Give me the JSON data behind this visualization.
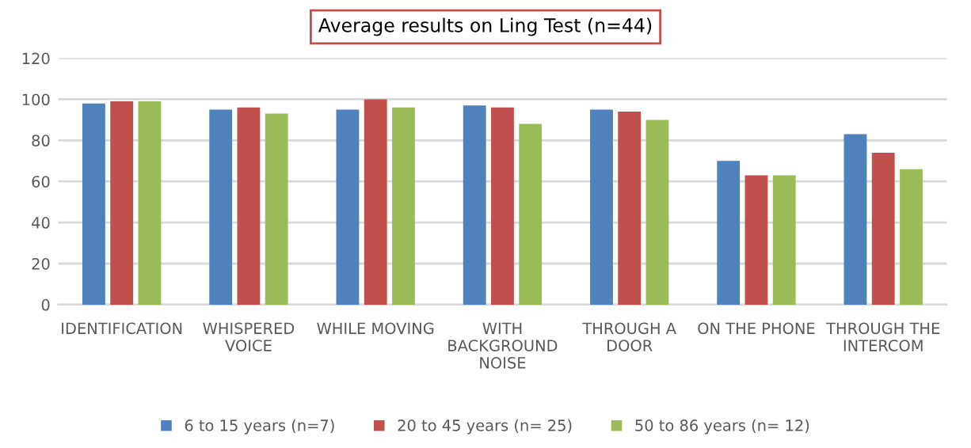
{
  "chart_data": {
    "type": "bar",
    "title": "Average results on Ling Test (n=44)",
    "categories": [
      "IDENTIFICATION",
      "WHISPERED\nVOICE",
      "WHILE MOVING",
      "WITH\nBACKGROUND\nNOISE",
      "THROUGH A\nDOOR",
      "ON THE PHONE",
      "THROUGH THE\nINTERCOM"
    ],
    "series": [
      {
        "name": "6 to 15 years (n=7)",
        "color": "#4f81bd",
        "values": [
          98,
          95,
          95,
          97,
          95,
          70,
          83
        ]
      },
      {
        "name": "20 to 45 years (n= 25)",
        "color": "#c0504d",
        "values": [
          99,
          96,
          100,
          96,
          94,
          63,
          74
        ]
      },
      {
        "name": "50 to 86 years (n= 12)",
        "color": "#9bbb59",
        "values": [
          99,
          93,
          96,
          88,
          90,
          63,
          66
        ]
      }
    ],
    "ylim": [
      0,
      120
    ],
    "yticks": [
      0,
      20,
      40,
      60,
      80,
      100,
      120
    ],
    "grid": "y",
    "legend": "bottom"
  }
}
